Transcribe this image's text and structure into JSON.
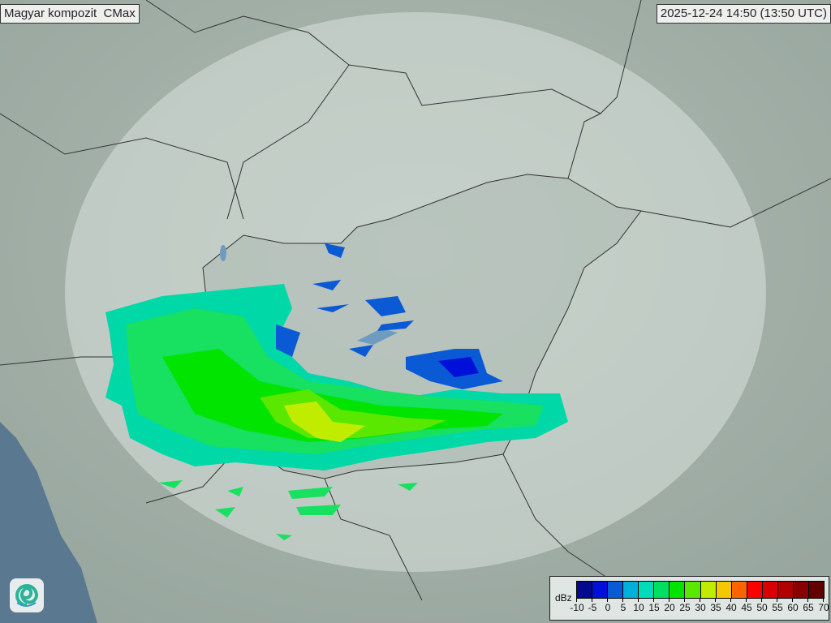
{
  "title": "Magyar kompozit  CMax",
  "timestamp": "2025-12-24 14:50 (13:50 UTC)",
  "legend": {
    "unit": "dBz",
    "ticks": [
      "-10",
      "-5",
      "0",
      "5",
      "10",
      "15",
      "20",
      "25",
      "30",
      "35",
      "40",
      "45",
      "50",
      "55",
      "60",
      "65",
      "70"
    ],
    "colors": [
      "#000a8c",
      "#0010d8",
      "#0a5ad6",
      "#00b0d8",
      "#00dcb8",
      "#00e060",
      "#00e400",
      "#5ae800",
      "#c0ec00",
      "#f4c800",
      "#fc6400",
      "#fc0000",
      "#d80000",
      "#b00000",
      "#880000",
      "#600000"
    ]
  },
  "logo": "omsz-swirl-logo",
  "colors": {
    "terrain": "#9fada5",
    "coverage": "#c9d4ce",
    "sea": "#5a7890"
  }
}
